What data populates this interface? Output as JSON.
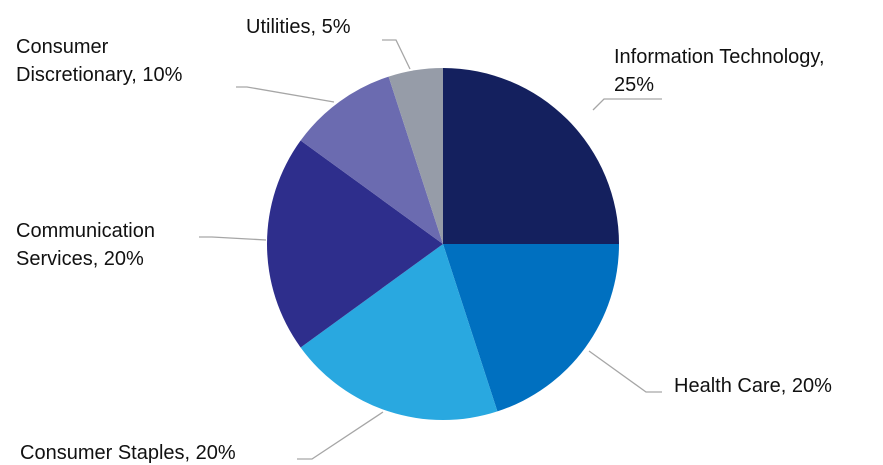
{
  "chart_data": {
    "type": "pie",
    "start_angle_deg": 90,
    "direction": "clockwise",
    "slices": [
      {
        "label": "Information Technology, 25%",
        "label_lines": [
          "Information Technology,",
          "25%"
        ],
        "value": 25,
        "color": "#14205e"
      },
      {
        "label": "Health Care, 20%",
        "label_lines": [
          "Health Care, 20%"
        ],
        "value": 20,
        "color": "#0070c0"
      },
      {
        "label": "Consumer Staples, 20%",
        "label_lines": [
          "Consumer Staples, 20%"
        ],
        "value": 20,
        "color": "#29a8e0"
      },
      {
        "label": "Communication Services, 20%",
        "label_lines": [
          "Communication",
          "Services, 20%"
        ],
        "value": 20,
        "color": "#2e2e8c"
      },
      {
        "label": "Consumer Discretionary, 10%",
        "label_lines": [
          "Consumer",
          "Discretionary, 10%"
        ],
        "value": 10,
        "color": "#6b6bb0"
      },
      {
        "label": "Utilities, 5%",
        "label_lines": [
          "Utilities, 5%"
        ],
        "value": 5,
        "color": "#969ca8"
      }
    ]
  }
}
